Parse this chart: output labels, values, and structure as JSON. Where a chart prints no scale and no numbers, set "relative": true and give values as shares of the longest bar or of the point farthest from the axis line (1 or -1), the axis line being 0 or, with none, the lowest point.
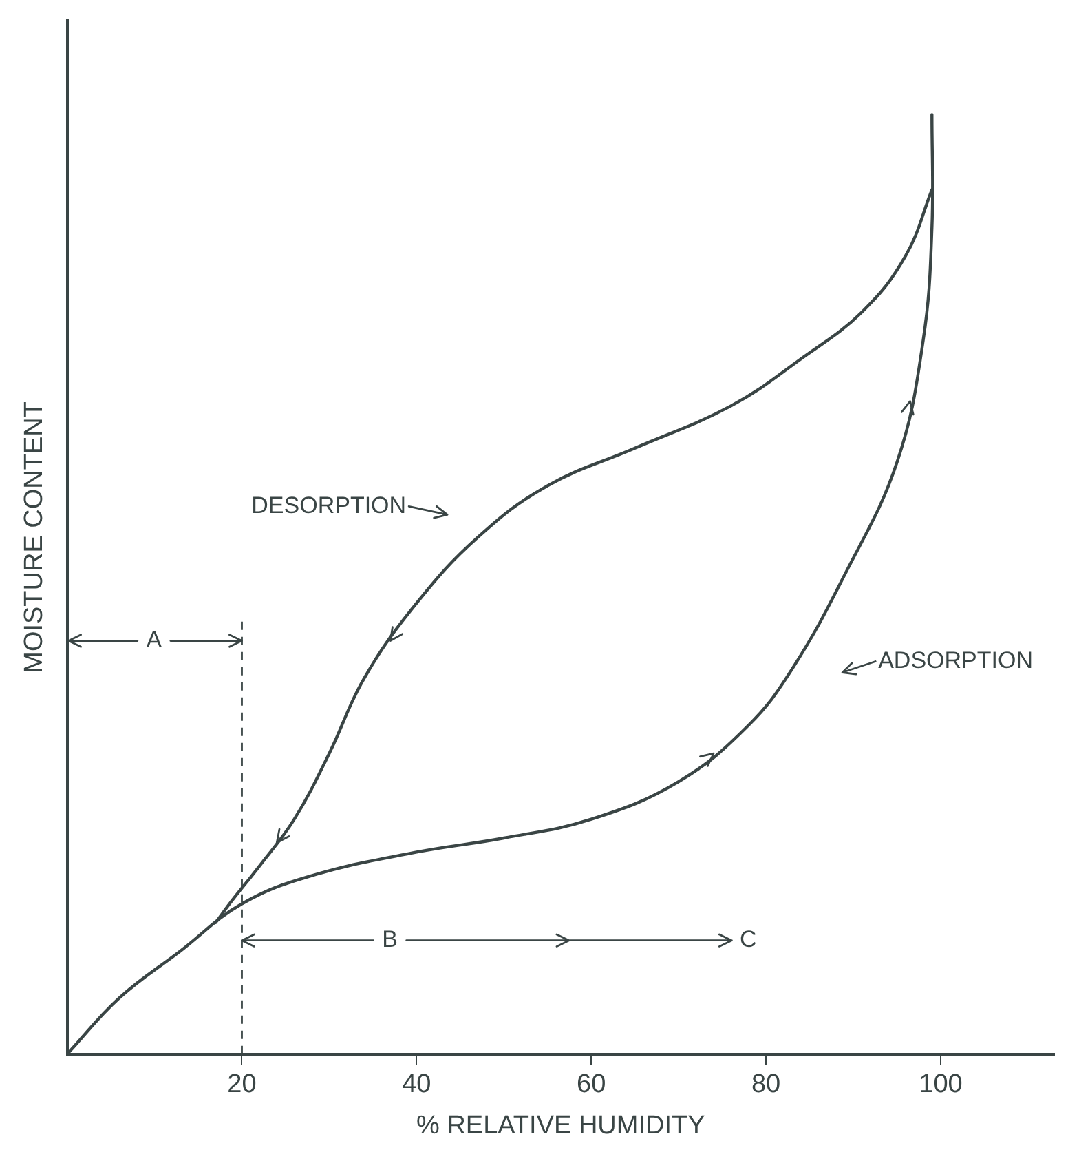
{
  "chart_data": {
    "type": "line",
    "relative": true,
    "xlabel": "% RELATIVE HUMIDITY",
    "ylabel": "MOISTURE CONTENT",
    "xlim": [
      0,
      113
    ],
    "xticks": [
      20,
      40,
      60,
      80,
      100
    ],
    "grid": false,
    "legend": false,
    "marker": "none",
    "series": [
      {
        "color": "#3a4545",
        "x": [
          0,
          6,
          13,
          20,
          28,
          40,
          50,
          60,
          70,
          78,
          83,
          89,
          95,
          98,
          99,
          99
        ],
        "values": [
          0,
          0.06,
          0.11,
          0.16,
          0.19,
          0.215,
          0.23,
          0.25,
          0.29,
          0.35,
          0.41,
          0.51,
          0.63,
          0.76,
          0.88,
          1.0
        ]
      },
      {
        "color": "#3a4545",
        "x": [
          99,
          96,
          91,
          84,
          76,
          65,
          55,
          47,
          40,
          34,
          30,
          26,
          22,
          19,
          17
        ],
        "values": [
          0.92,
          0.85,
          0.79,
          0.74,
          0.69,
          0.645,
          0.605,
          0.55,
          0.48,
          0.4,
          0.32,
          0.25,
          0.2,
          0.165,
          0.14
        ]
      }
    ],
    "ref_lines": [
      {
        "axis": "x",
        "value": 20,
        "line_style": "dashed",
        "color": "#3a4545"
      }
    ],
    "annotations": [
      "DESORPTION",
      "ADSORPTION",
      "A",
      "B",
      "C"
    ]
  }
}
